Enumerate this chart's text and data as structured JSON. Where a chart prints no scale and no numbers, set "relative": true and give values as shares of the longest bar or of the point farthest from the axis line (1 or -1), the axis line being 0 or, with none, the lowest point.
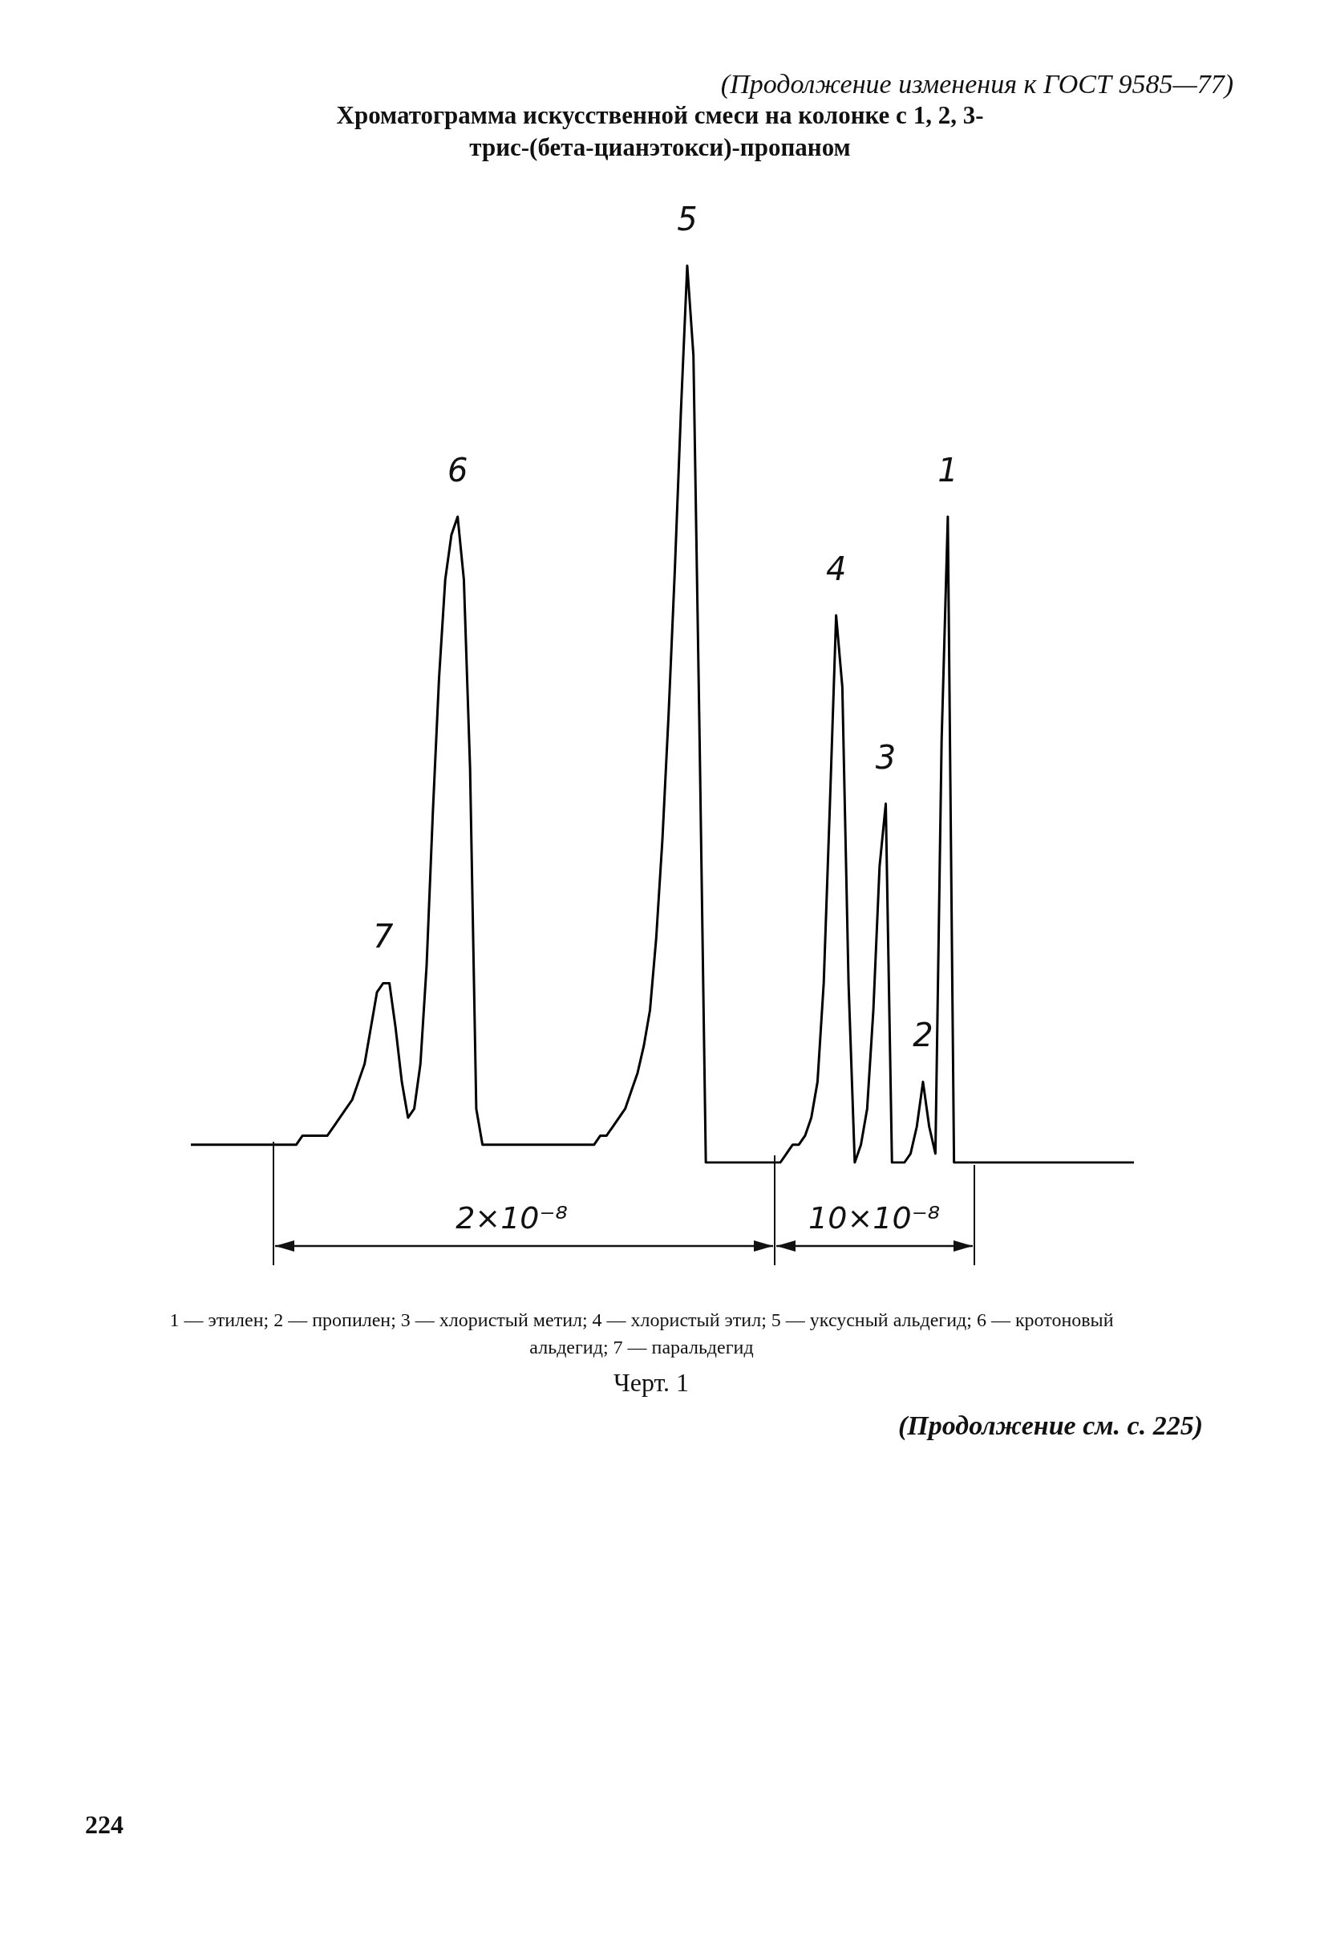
{
  "chart_data": {
    "type": "line",
    "title": "Хроматограмма искусственной смеси на колонке с 1, 2, 3- трис-(бета-цианэтокси)-пропаном",
    "relative": true,
    "color": "#000000",
    "marker": "none",
    "grid": false,
    "tick_labels": false,
    "categories": [
      null,
      null,
      null,
      null,
      null,
      null,
      null,
      null,
      null,
      null,
      null,
      null,
      null,
      null,
      null,
      null,
      null,
      null,
      null,
      null,
      null,
      null,
      null,
      null,
      null,
      null,
      null,
      null,
      null,
      null,
      null,
      null,
      null,
      null,
      null,
      null,
      null,
      null,
      null,
      null,
      null,
      null,
      null,
      null,
      null,
      null,
      null,
      null,
      null,
      null,
      null,
      null,
      null,
      null,
      null,
      null,
      null,
      null,
      null,
      null,
      null,
      null,
      null,
      null,
      null,
      null,
      null,
      null,
      null,
      null,
      null,
      null,
      null,
      null,
      null,
      null,
      null,
      null,
      null,
      null,
      null,
      null,
      null,
      null,
      null,
      null,
      null,
      null,
      null,
      null,
      null,
      null,
      null,
      null,
      null,
      null,
      null,
      null,
      null,
      null,
      null,
      null,
      null,
      null,
      null,
      null,
      null,
      null,
      null,
      null,
      null,
      null,
      null,
      null,
      null,
      null,
      null,
      null,
      null,
      null,
      null,
      null,
      null,
      null,
      null,
      null,
      null,
      null,
      null,
      null,
      null,
      null,
      null,
      null,
      null,
      null,
      null,
      null,
      null,
      null,
      null,
      null,
      null,
      null,
      null,
      null,
      null,
      null,
      null,
      null,
      null,
      null,
      null
    ],
    "values": [
      0.02,
      0.02,
      0.02,
      0.02,
      0.02,
      0.02,
      0.02,
      0.02,
      0.02,
      0.02,
      0.02,
      0.02,
      0.02,
      0.02,
      0.02,
      0.02,
      0.02,
      0.02,
      0.03,
      0.03,
      0.03,
      0.03,
      0.03,
      0.04,
      0.05,
      0.06,
      0.07,
      0.09,
      0.11,
      0.15,
      0.19,
      0.2,
      0.2,
      0.15,
      0.09,
      0.05,
      0.06,
      0.11,
      0.22,
      0.39,
      0.54,
      0.65,
      0.7,
      0.72,
      0.65,
      0.44,
      0.06,
      0.02,
      0.02,
      0.02,
      0.02,
      0.02,
      0.02,
      0.02,
      0.02,
      0.02,
      0.02,
      0.02,
      0.02,
      0.02,
      0.02,
      0.02,
      0.02,
      0.02,
      0.02,
      0.02,
      0.03,
      0.03,
      0.04,
      0.05,
      0.06,
      0.08,
      0.1,
      0.13,
      0.17,
      0.25,
      0.36,
      0.5,
      0.66,
      0.84,
      1,
      0.9,
      0.47,
      0,
      0,
      0,
      0,
      0,
      0,
      0,
      0,
      0,
      0,
      0,
      0,
      0,
      0.01,
      0.02,
      0.02,
      0.03,
      0.05,
      0.09,
      0.2,
      0.4,
      0.61,
      0.53,
      0.2,
      0,
      0.02,
      0.06,
      0.17,
      0.33,
      0.4,
      0,
      0,
      0,
      0.01,
      0.04,
      0.09,
      0.04,
      0.01,
      0.47,
      0.72,
      0,
      0,
      0,
      0,
      0,
      0,
      0,
      0,
      0,
      0,
      0,
      0,
      0,
      0,
      0,
      0,
      0,
      0,
      0,
      0,
      0,
      0,
      0,
      0,
      0,
      0,
      0,
      0,
      0,
      0
    ],
    "annotations": [
      {
        "text": "7",
        "y": 0.2
      },
      {
        "text": "6",
        "y": 0.72
      },
      {
        "text": "5",
        "y": 1
      },
      {
        "text": "4",
        "y": 0.61
      },
      {
        "text": "3",
        "y": 0.4
      },
      {
        "text": "2",
        "y": 0.09
      },
      {
        "text": "1",
        "y": 0.72
      },
      "(Продолжение изменения к ГОСТ 9585—77)",
      "2×10⁻⁸",
      "10×10⁻⁸",
      "1 — этилен; 2 — пропилен; 3 — хлористый метил; 4 — хлористый этил; 5 — уксусный альдегид; 6 — кротоновый альдегид; 7 — паральдегид",
      "Черт. 1",
      "(Продолжение см. с. 225)",
      "224"
    ]
  }
}
